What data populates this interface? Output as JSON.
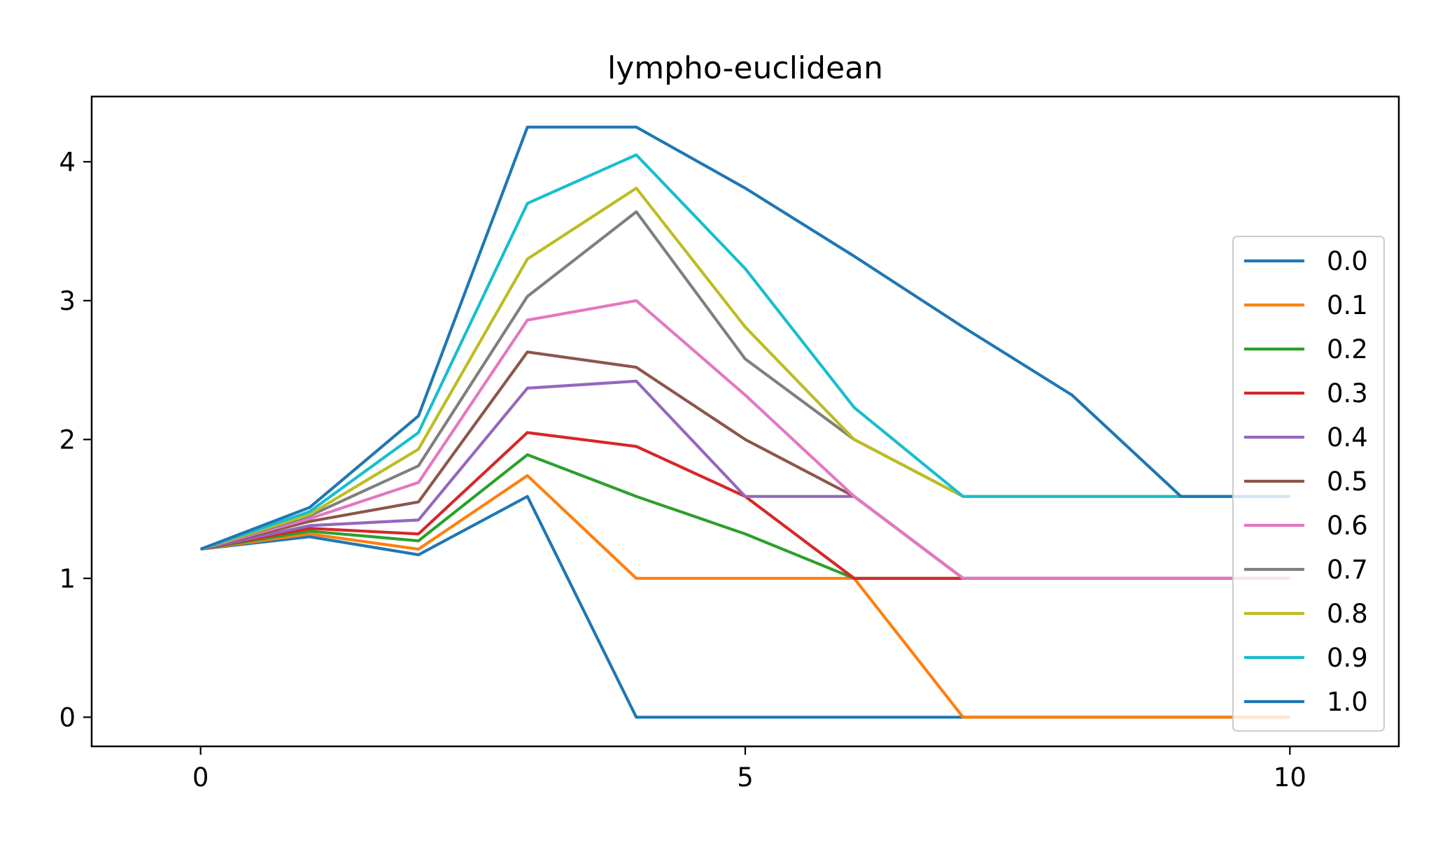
{
  "chart_data": {
    "type": "line",
    "title": "lympho-euclidean",
    "xlabel": "",
    "ylabel": "",
    "xlim": [
      -1,
      11
    ],
    "ylim": [
      -0.21,
      4.47
    ],
    "xticks": [
      0,
      5,
      10
    ],
    "yticks": [
      0,
      1,
      2,
      3,
      4
    ],
    "grid": false,
    "legend_placement": "center-right",
    "x": [
      0,
      1,
      2,
      3,
      4,
      5,
      6,
      7,
      8,
      9,
      10
    ],
    "series": [
      {
        "name": "0.0",
        "color": "#1f77b4",
        "values": [
          1.21,
          1.3,
          1.17,
          1.59,
          0.0,
          0.0,
          0.0,
          0.0,
          0.0,
          0.0,
          0.0
        ]
      },
      {
        "name": "0.1",
        "color": "#ff7f0e",
        "values": [
          1.21,
          1.32,
          1.21,
          1.74,
          1.0,
          1.0,
          1.0,
          0.0,
          0.0,
          0.0,
          0.0
        ]
      },
      {
        "name": "0.2",
        "color": "#2ca02c",
        "values": [
          1.21,
          1.34,
          1.27,
          1.89,
          1.59,
          1.32,
          1.0,
          1.0,
          1.0,
          1.0,
          1.0
        ]
      },
      {
        "name": "0.3",
        "color": "#d62728",
        "values": [
          1.21,
          1.36,
          1.32,
          2.05,
          1.95,
          1.59,
          1.0,
          1.0,
          1.0,
          1.0,
          1.0
        ]
      },
      {
        "name": "0.4",
        "color": "#9467bd",
        "values": [
          1.21,
          1.38,
          1.42,
          2.37,
          2.42,
          1.59,
          1.59,
          1.0,
          1.0,
          1.0,
          1.0
        ]
      },
      {
        "name": "0.5",
        "color": "#8c564b",
        "values": [
          1.21,
          1.41,
          1.55,
          2.63,
          2.52,
          2.0,
          1.59,
          1.0,
          1.0,
          1.0,
          1.0
        ]
      },
      {
        "name": "0.6",
        "color": "#e377c2",
        "values": [
          1.21,
          1.43,
          1.69,
          2.86,
          3.0,
          2.32,
          1.59,
          1.0,
          1.0,
          1.0,
          1.0
        ]
      },
      {
        "name": "0.7",
        "color": "#7f7f7f",
        "values": [
          1.21,
          1.45,
          1.81,
          3.03,
          3.64,
          2.58,
          2.0,
          1.59,
          1.59,
          1.59,
          1.59
        ]
      },
      {
        "name": "0.8",
        "color": "#bcbd22",
        "values": [
          1.21,
          1.46,
          1.93,
          3.3,
          3.81,
          2.81,
          2.0,
          1.59,
          1.59,
          1.59,
          1.59
        ]
      },
      {
        "name": "0.9",
        "color": "#17becf",
        "values": [
          1.21,
          1.48,
          2.05,
          3.7,
          4.05,
          3.23,
          2.23,
          1.59,
          1.59,
          1.59,
          1.59
        ]
      },
      {
        "name": "1.0",
        "color": "#1f77b4",
        "values": [
          1.21,
          1.51,
          2.17,
          4.25,
          4.25,
          3.81,
          3.32,
          2.81,
          2.32,
          1.59,
          1.59
        ]
      }
    ]
  }
}
